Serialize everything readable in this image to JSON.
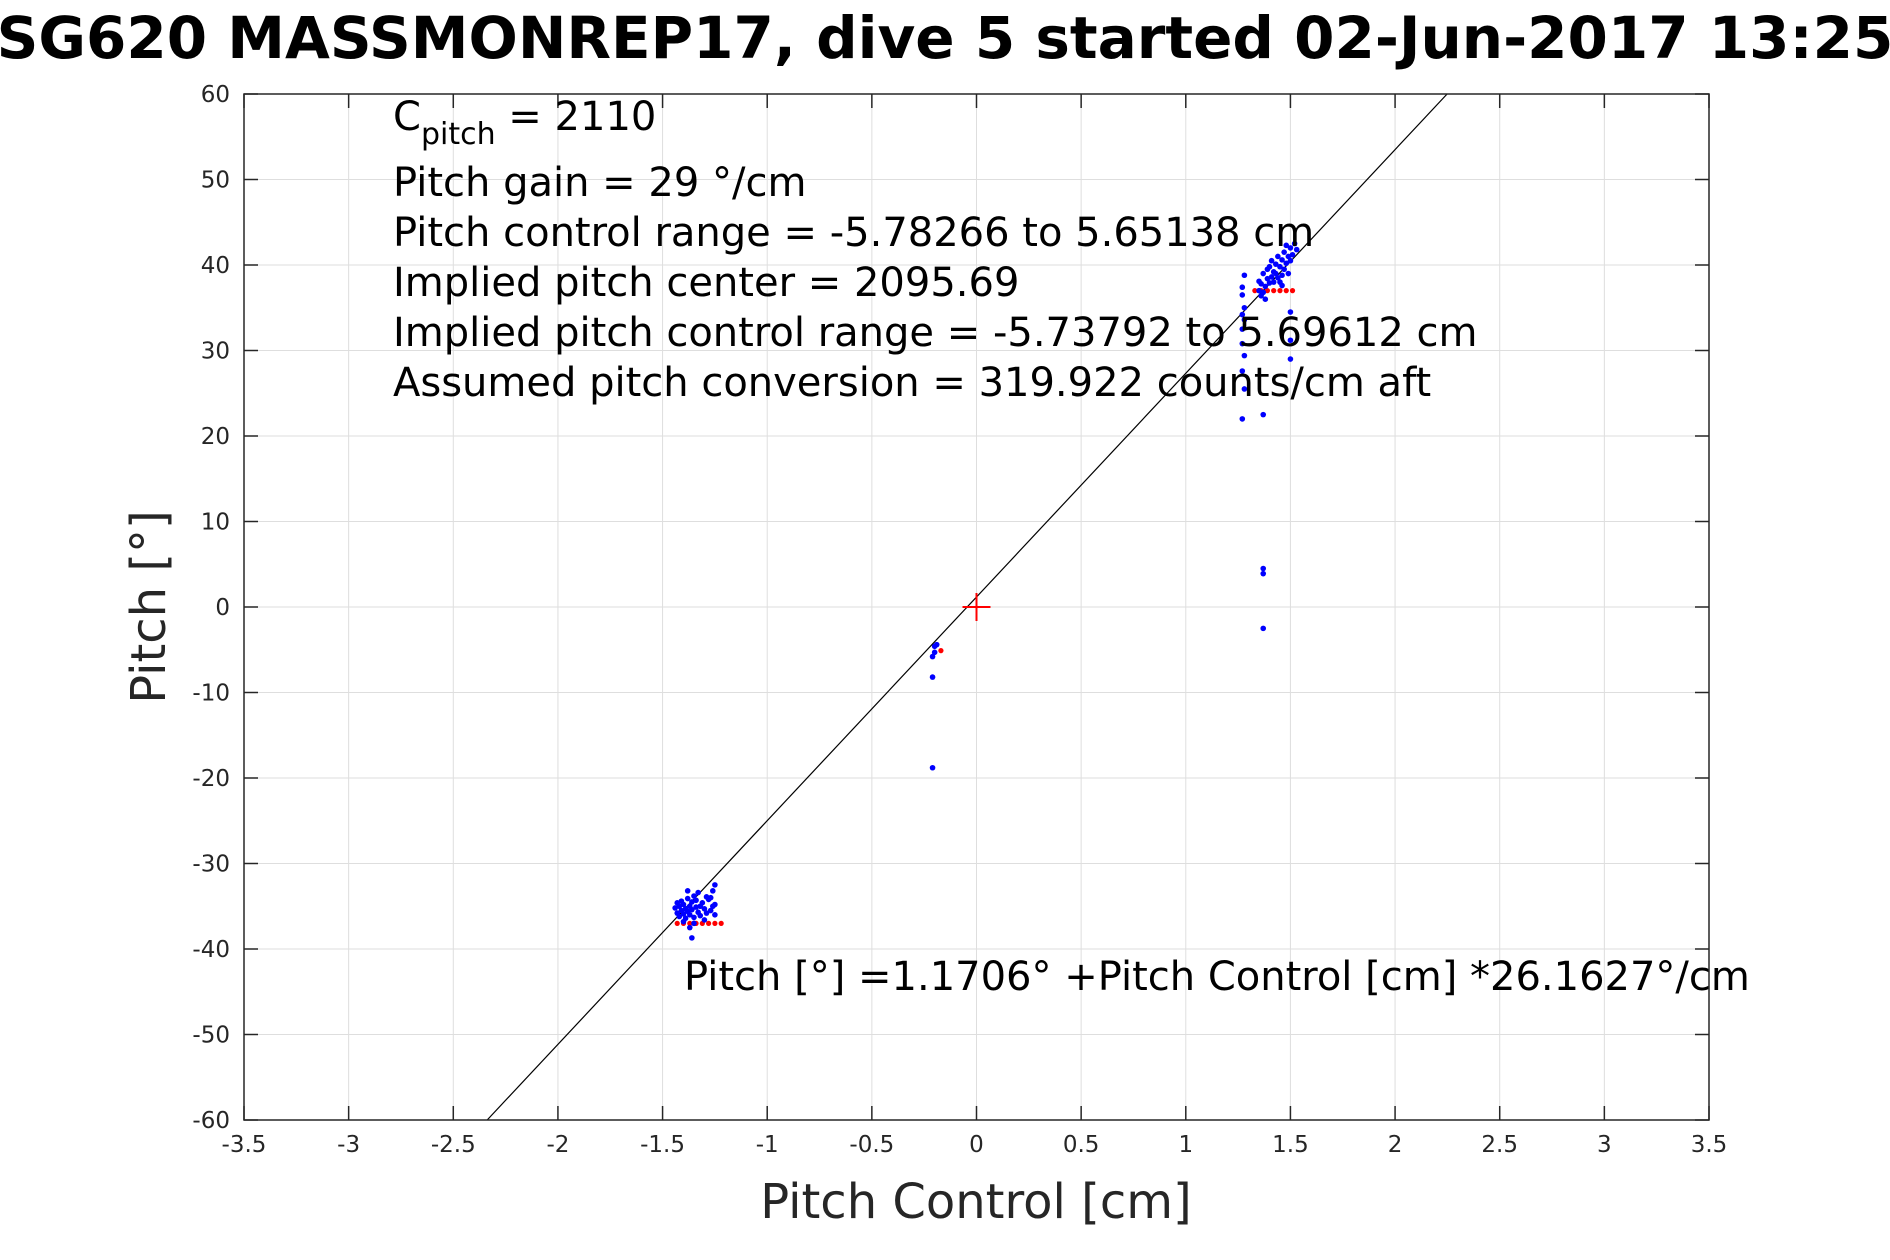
{
  "chart_data": {
    "type": "scatter",
    "title": "SG620 MASSMONREP17, dive 5 started 02-Jun-2017 13:25",
    "xlabel": "Pitch Control [cm]",
    "ylabel": "Pitch [°]",
    "xlim": [
      -3.5,
      3.5
    ],
    "ylim": [
      -60,
      60
    ],
    "xticks": [
      -3.5,
      -3,
      -2.5,
      -2,
      -1.5,
      -1,
      -0.5,
      0,
      0.5,
      1,
      1.5,
      2,
      2.5,
      3,
      3.5
    ],
    "xtick_labels": [
      "-3.5",
      "-3",
      "-2.5",
      "-2",
      "-1.5",
      "-1",
      "-0.5",
      "0",
      "0.5",
      "1",
      "1.5",
      "2",
      "2.5",
      "3",
      "3.5"
    ],
    "yticks": [
      60,
      50,
      40,
      30,
      20,
      10,
      0,
      -10,
      -20,
      -30,
      -40,
      -50,
      -60
    ],
    "ytick_labels": [
      "60",
      "50",
      "40",
      "30",
      "20",
      "10",
      "0",
      "-10",
      "-20",
      "-30",
      "-40",
      "-50",
      "-60"
    ],
    "grid": true,
    "annotations": {
      "c_pitch_prefix": "C",
      "c_pitch_sub": "pitch",
      "c_pitch_value": " = 2110",
      "lines": [
        "Pitch gain = 29 °/cm",
        "Pitch control range = -5.78266 to 5.65138 cm",
        "Implied pitch center = 2095.69",
        "Implied pitch control range = -5.73792 to 5.69612 cm",
        "Assumed pitch conversion = 319.922 counts/cm aft"
      ],
      "fit_equation": "Pitch [°] =1.1706° +Pitch Control [cm] *26.1627°/cm"
    },
    "fit_line": {
      "intercept": 1.1706,
      "slope": 26.1627
    },
    "center_marker": {
      "x": 0,
      "y": 0
    },
    "colors": {
      "observed": "#0000ff",
      "predicted": "#ff0000",
      "fit": "#000000",
      "center": "#ff0000",
      "grid": "#dedede",
      "axes": "#262626"
    },
    "series": [
      {
        "name": "observed",
        "points": [
          [
            -1.44,
            -35.2
          ],
          [
            -1.43,
            -34.6
          ],
          [
            -1.43,
            -35.8
          ],
          [
            -1.42,
            -35.0
          ],
          [
            -1.42,
            -36.2
          ],
          [
            -1.41,
            -34.4
          ],
          [
            -1.41,
            -35.5
          ],
          [
            -1.4,
            -35.9
          ],
          [
            -1.4,
            -34.8
          ],
          [
            -1.39,
            -35.3
          ],
          [
            -1.39,
            -36.4
          ],
          [
            -1.38,
            -34.1
          ],
          [
            -1.38,
            -35.6
          ],
          [
            -1.37,
            -35.0
          ],
          [
            -1.37,
            -36.0
          ],
          [
            -1.36,
            -34.5
          ],
          [
            -1.36,
            -35.4
          ],
          [
            -1.35,
            -33.8
          ],
          [
            -1.35,
            -36.3
          ],
          [
            -1.34,
            -35.1
          ],
          [
            -1.34,
            -34.3
          ],
          [
            -1.33,
            -35.7
          ],
          [
            -1.33,
            -33.4
          ],
          [
            -1.32,
            -35.0
          ],
          [
            -1.32,
            -36.1
          ],
          [
            -1.31,
            -34.6
          ],
          [
            -1.3,
            -35.3
          ],
          [
            -1.29,
            -33.9
          ],
          [
            -1.29,
            -35.8
          ],
          [
            -1.28,
            -34.2
          ],
          [
            -1.27,
            -35.5
          ],
          [
            -1.27,
            -34.0
          ],
          [
            -1.26,
            -33.2
          ],
          [
            -1.26,
            -35.0
          ],
          [
            -1.25,
            -32.5
          ],
          [
            -1.25,
            -34.8
          ],
          [
            -1.25,
            -36.0
          ],
          [
            -1.37,
            -37.5
          ],
          [
            -1.36,
            -38.7
          ],
          [
            -1.35,
            -37.0
          ],
          [
            -1.4,
            -36.8
          ],
          [
            -1.38,
            -33.2
          ],
          [
            -1.3,
            -36.6
          ],
          [
            -0.2,
            -4.6
          ],
          [
            -0.2,
            -5.3
          ],
          [
            -0.21,
            -5.8
          ],
          [
            -0.19,
            -4.4
          ],
          [
            -0.21,
            -8.2
          ],
          [
            -0.21,
            -18.8
          ],
          [
            1.28,
            35.0
          ],
          [
            1.27,
            34.2
          ],
          [
            1.27,
            36.5
          ],
          [
            1.28,
            33.6
          ],
          [
            1.27,
            32.5
          ],
          [
            1.27,
            30.8
          ],
          [
            1.28,
            29.4
          ],
          [
            1.27,
            27.6
          ],
          [
            1.28,
            25.5
          ],
          [
            1.27,
            22.0
          ],
          [
            1.28,
            38.8
          ],
          [
            1.27,
            37.4
          ],
          [
            1.35,
            37.0
          ],
          [
            1.35,
            38.1
          ],
          [
            1.36,
            36.4
          ],
          [
            1.36,
            37.8
          ],
          [
            1.37,
            36.8
          ],
          [
            1.37,
            39.0
          ],
          [
            1.38,
            37.5
          ],
          [
            1.38,
            36.0
          ],
          [
            1.39,
            38.4
          ],
          [
            1.39,
            39.5
          ],
          [
            1.4,
            37.9
          ],
          [
            1.4,
            39.8
          ],
          [
            1.41,
            38.6
          ],
          [
            1.41,
            40.5
          ],
          [
            1.42,
            39.2
          ],
          [
            1.42,
            38.0
          ],
          [
            1.43,
            40.1
          ],
          [
            1.43,
            39.0
          ],
          [
            1.44,
            38.5
          ],
          [
            1.45,
            39.8
          ],
          [
            1.46,
            40.6
          ],
          [
            1.46,
            38.8
          ],
          [
            1.47,
            41.5
          ],
          [
            1.47,
            39.5
          ],
          [
            1.48,
            40.2
          ],
          [
            1.48,
            42.3
          ],
          [
            1.49,
            39.0
          ],
          [
            1.49,
            41.0
          ],
          [
            1.5,
            40.5
          ],
          [
            1.5,
            42.0
          ],
          [
            1.51,
            41.2
          ],
          [
            1.52,
            42.5
          ],
          [
            1.53,
            41.8
          ],
          [
            1.44,
            41.0
          ],
          [
            1.45,
            38.0
          ],
          [
            1.46,
            37.6
          ],
          [
            1.37,
            22.5
          ],
          [
            1.37,
            4.5
          ],
          [
            1.37,
            3.9
          ],
          [
            1.37,
            -2.5
          ],
          [
            1.5,
            34.5
          ],
          [
            1.5,
            31.2
          ],
          [
            1.5,
            29.0
          ]
        ]
      },
      {
        "name": "predicted",
        "points": [
          [
            -1.43,
            -37.0
          ],
          [
            -1.4,
            -37.0
          ],
          [
            -1.37,
            -37.0
          ],
          [
            -1.34,
            -37.0
          ],
          [
            -1.31,
            -37.0
          ],
          [
            -1.28,
            -37.0
          ],
          [
            -1.25,
            -37.0
          ],
          [
            -1.22,
            -37.0
          ],
          [
            -0.17,
            -5.1
          ],
          [
            1.33,
            37.0
          ],
          [
            1.36,
            37.0
          ],
          [
            1.39,
            37.0
          ],
          [
            1.42,
            37.0
          ],
          [
            1.45,
            37.0
          ],
          [
            1.48,
            37.0
          ],
          [
            1.51,
            37.0
          ]
        ]
      }
    ]
  }
}
